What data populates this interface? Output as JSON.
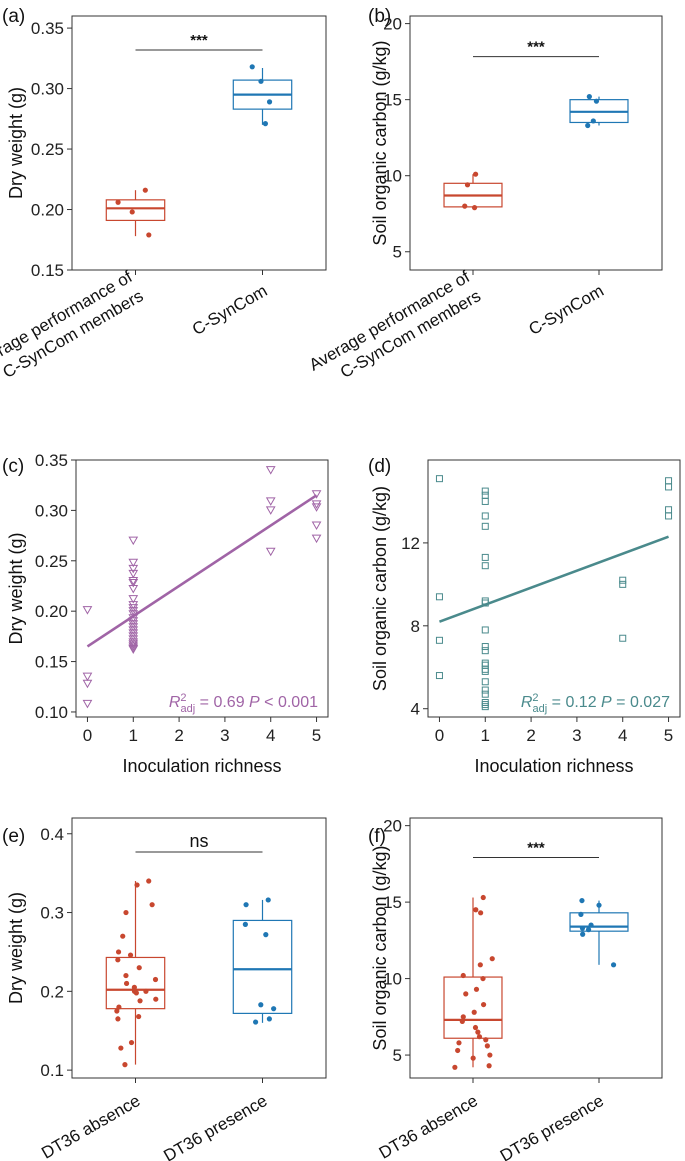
{
  "chart_data": [
    {
      "panel": "(a)",
      "type": "box",
      "ylabel": "Dry weight (g)",
      "ylim": [
        0.15,
        0.36
      ],
      "yticks": [
        "0.15",
        "0.20",
        "0.25",
        "0.30",
        "0.35"
      ],
      "categories": [
        "Average performance of\nC-SynCom members",
        "C-SynCom"
      ],
      "colors": [
        "#c8472f",
        "#1f77b4"
      ],
      "boxes": [
        {
          "min": 0.178,
          "q1": 0.191,
          "median": 0.201,
          "q3": 0.208,
          "max": 0.216,
          "points": [
            0.216,
            0.206,
            0.198,
            0.179
          ]
        },
        {
          "min": 0.27,
          "q1": 0.283,
          "median": 0.295,
          "q3": 0.307,
          "max": 0.317,
          "points": [
            0.318,
            0.306,
            0.289,
            0.271
          ]
        }
      ],
      "significance": "***"
    },
    {
      "panel": "(b)",
      "type": "box",
      "ylabel": "Soil organic carbon (g/kg)",
      "ylim": [
        3.8,
        20.5
      ],
      "yticks": [
        "5",
        "10",
        "15",
        "20"
      ],
      "categories": [
        "Average performance of\nC-SynCom members",
        "C-SynCom"
      ],
      "colors": [
        "#c8472f",
        "#1f77b4"
      ],
      "boxes": [
        {
          "min": 7.8,
          "q1": 7.95,
          "median": 8.7,
          "q3": 9.5,
          "max": 10.1,
          "points": [
            10.1,
            9.4,
            8.0,
            7.9
          ]
        },
        {
          "min": 13.3,
          "q1": 13.5,
          "median": 14.2,
          "q3": 15.0,
          "max": 15.2,
          "points": [
            15.2,
            14.9,
            13.6,
            13.3
          ]
        }
      ],
      "significance": "***"
    },
    {
      "panel": "(c)",
      "type": "scatter",
      "xlabel": "Inoculation richness",
      "ylabel": "Dry weight (g)",
      "xlim": [
        -0.25,
        5.25
      ],
      "ylim": [
        0.095,
        0.35
      ],
      "xticks": [
        "0",
        "1",
        "2",
        "3",
        "4",
        "5"
      ],
      "yticks": [
        "0.10",
        "0.15",
        "0.20",
        "0.25",
        "0.30",
        "0.35"
      ],
      "marker": "triangle-down",
      "color": "#a064a6",
      "x": [
        0,
        0,
        0,
        0,
        1,
        1,
        1,
        1,
        1,
        1,
        1,
        1,
        1,
        1,
        1,
        1,
        1,
        1,
        1,
        1,
        1,
        1,
        1,
        1,
        1,
        1,
        1,
        1,
        1,
        4,
        4,
        4,
        4,
        5,
        5,
        5,
        5,
        5
      ],
      "y": [
        0.201,
        0.135,
        0.128,
        0.108,
        0.27,
        0.248,
        0.242,
        0.237,
        0.23,
        0.228,
        0.222,
        0.212,
        0.206,
        0.203,
        0.2,
        0.197,
        0.193,
        0.19,
        0.187,
        0.184,
        0.181,
        0.178,
        0.175,
        0.172,
        0.169,
        0.167,
        0.165,
        0.163,
        0.162,
        0.34,
        0.309,
        0.3,
        0.259,
        0.316,
        0.306,
        0.303,
        0.285,
        0.272
      ],
      "fit": {
        "x": [
          0,
          5
        ],
        "y": [
          0.165,
          0.315
        ]
      },
      "stat_label": "R",
      "stat_sub": "adj",
      "stat_sup": "2",
      "stat_r2": " = 0.69",
      "stat_p_label": "P",
      "stat_p": " < 0.001"
    },
    {
      "panel": "(d)",
      "type": "scatter",
      "xlabel": "Inoculation richness",
      "ylabel": "Soil organic carbon (g/kg)",
      "xlim": [
        -0.25,
        5.25
      ],
      "ylim": [
        3.6,
        16.0
      ],
      "xticks": [
        "0",
        "1",
        "2",
        "3",
        "4",
        "5"
      ],
      "yticks": [
        "4",
        "8",
        "12"
      ],
      "marker": "square",
      "color": "#4a8a8c",
      "x": [
        0,
        0,
        0,
        0,
        1,
        1,
        1,
        1,
        1,
        1,
        1,
        1,
        1,
        1,
        1,
        1,
        1,
        1,
        1,
        1,
        1,
        1,
        1,
        1,
        1,
        1,
        4,
        4,
        4,
        5,
        5,
        5,
        5
      ],
      "y": [
        15.1,
        9.4,
        7.3,
        5.6,
        14.5,
        14.3,
        14.0,
        13.3,
        12.8,
        11.3,
        10.9,
        9.2,
        9.1,
        7.8,
        7.0,
        6.8,
        6.2,
        6.1,
        5.9,
        5.8,
        5.3,
        4.9,
        4.7,
        4.3,
        4.2,
        4.1,
        10.2,
        10.0,
        7.4,
        15.0,
        14.7,
        13.6,
        13.3
      ],
      "fit": {
        "x": [
          0,
          5
        ],
        "y": [
          8.2,
          12.3
        ]
      },
      "stat_label": "R",
      "stat_sub": "adj",
      "stat_sup": "2",
      "stat_r2": " = 0.12",
      "stat_p_label": "P",
      "stat_p": " = 0.027"
    },
    {
      "panel": "(e)",
      "type": "box",
      "ylabel": "Dry weight (g)",
      "ylim": [
        0.09,
        0.42
      ],
      "yticks": [
        "0.1",
        "0.2",
        "0.3",
        "0.4"
      ],
      "categories": [
        "DT36 absence",
        "DT36 presence"
      ],
      "colors": [
        "#c8472f",
        "#1f77b4"
      ],
      "boxes": [
        {
          "min": 0.107,
          "q1": 0.178,
          "median": 0.202,
          "q3": 0.243,
          "max": 0.34,
          "points": [
            0.34,
            0.335,
            0.31,
            0.3,
            0.27,
            0.25,
            0.246,
            0.24,
            0.23,
            0.22,
            0.215,
            0.21,
            0.205,
            0.2,
            0.2,
            0.198,
            0.19,
            0.188,
            0.18,
            0.175,
            0.168,
            0.165,
            0.135,
            0.128,
            0.107
          ]
        },
        {
          "min": 0.16,
          "q1": 0.172,
          "median": 0.228,
          "q3": 0.29,
          "max": 0.316,
          "points": [
            0.316,
            0.31,
            0.285,
            0.272,
            0.183,
            0.178,
            0.165,
            0.161
          ]
        }
      ],
      "significance": "ns"
    },
    {
      "panel": "(f)",
      "type": "box",
      "ylabel": "Soil organic carbon (g/kg)",
      "ylim": [
        3.5,
        20.5
      ],
      "yticks": [
        "5",
        "10",
        "15",
        "20"
      ],
      "categories": [
        "DT36 absence",
        "DT36 presence"
      ],
      "colors": [
        "#c8472f",
        "#1f77b4"
      ],
      "boxes": [
        {
          "min": 4.2,
          "q1": 6.1,
          "median": 7.3,
          "q3": 10.1,
          "max": 15.3,
          "points": [
            15.3,
            14.5,
            14.3,
            11.3,
            10.9,
            10.2,
            10.0,
            9.3,
            9.0,
            8.3,
            7.8,
            7.5,
            7.2,
            6.8,
            6.5,
            6.2,
            6.0,
            5.8,
            5.6,
            5.3,
            5.0,
            4.8,
            4.3,
            4.2
          ]
        },
        {
          "min": 10.9,
          "q1": 13.1,
          "median": 13.4,
          "q3": 14.3,
          "max": 15.1,
          "points": [
            15.1,
            14.8,
            14.2,
            13.5,
            13.3,
            13.2,
            12.9,
            10.9
          ]
        }
      ],
      "significance": "***"
    }
  ]
}
